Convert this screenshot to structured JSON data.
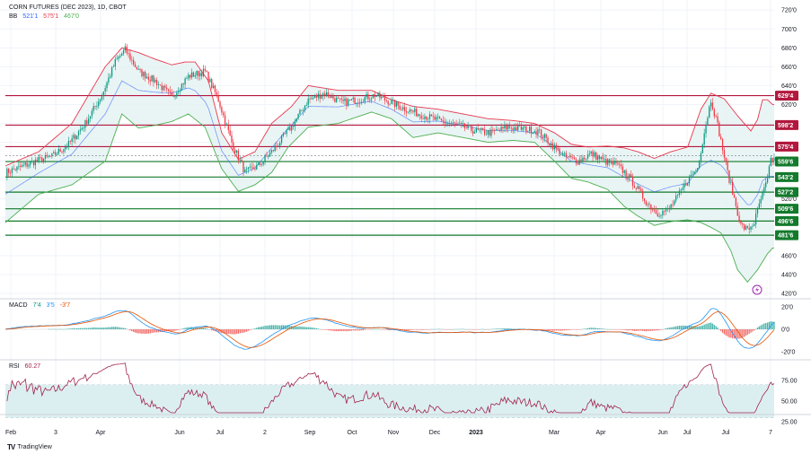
{
  "header": {
    "symbol": "CORN FUTURES (DEC 2023), 1D, CBOT",
    "bb_label": "BB",
    "bb_values": [
      "521'1",
      "575'1",
      "467'0"
    ],
    "macd_label": "MACD",
    "macd_values": [
      "7'4",
      "3'5",
      "-3'7"
    ],
    "rsi_label": "RSI",
    "rsi_value": "60.27"
  },
  "colors": {
    "up": "#089981",
    "down": "#f23645",
    "bb_upper": "#e8384f",
    "bb_lower": "#4caf50",
    "bb_basis": "#2962ff",
    "bb_fill": "#e4f1f1",
    "resistance": "#b2173d",
    "support": "#137a2c",
    "rsi_line": "#a0244f",
    "rsi_band": "#dceff0",
    "macd_line": "#2196f3",
    "signal_line": "#e65100"
  },
  "logo_text": "TradingView",
  "chart_data": [
    {
      "type": "candlestick",
      "name": "price",
      "y_axis_ticks": [
        "720'0",
        "700'0",
        "680'0",
        "660'0",
        "640'0",
        "620'0",
        "520'0",
        "460'0",
        "440'0",
        "420'0"
      ],
      "y_range": [
        420,
        724
      ],
      "x_labels": [
        "Feb",
        "3",
        "Apr",
        "Jun",
        "Jul",
        "2",
        "Sep",
        "Oct",
        "Nov",
        "Dec",
        "2023",
        "Mar",
        "Apr",
        "Jun",
        "Jul",
        "Jul",
        "7"
      ],
      "resistance_levels": [
        {
          "value": 629.4,
          "label": "629'4"
        },
        {
          "value": 598.2,
          "label": "598'2"
        },
        {
          "value": 575.4,
          "label": "575'4"
        }
      ],
      "support_levels": [
        {
          "value": 559.6,
          "label": "559'6"
        },
        {
          "value": 543.2,
          "label": "543'2"
        },
        {
          "value": 527.2,
          "label": "527'2"
        },
        {
          "value": 509.6,
          "label": "509'6"
        },
        {
          "value": 496.6,
          "label": "496'6"
        },
        {
          "value": 481.6,
          "label": "481'6"
        }
      ],
      "close_anchors": [
        [
          0,
          548
        ],
        [
          8,
          553
        ],
        [
          18,
          560
        ],
        [
          28,
          565
        ],
        [
          38,
          578
        ],
        [
          48,
          600
        ],
        [
          58,
          630
        ],
        [
          66,
          665
        ],
        [
          72,
          678
        ],
        [
          80,
          655
        ],
        [
          90,
          645
        ],
        [
          100,
          628
        ],
        [
          110,
          650
        ],
        [
          120,
          655
        ],
        [
          128,
          625
        ],
        [
          136,
          580
        ],
        [
          144,
          548
        ],
        [
          152,
          555
        ],
        [
          160,
          570
        ],
        [
          166,
          583
        ],
        [
          174,
          602
        ],
        [
          182,
          625
        ],
        [
          192,
          632
        ],
        [
          202,
          622
        ],
        [
          212,
          625
        ],
        [
          222,
          630
        ],
        [
          232,
          622
        ],
        [
          242,
          614
        ],
        [
          252,
          608
        ],
        [
          262,
          602
        ],
        [
          272,
          598
        ],
        [
          282,
          592
        ],
        [
          292,
          590
        ],
        [
          302,
          596
        ],
        [
          312,
          594
        ],
        [
          320,
          592
        ],
        [
          328,
          578
        ],
        [
          336,
          565
        ],
        [
          344,
          560
        ],
        [
          352,
          568
        ],
        [
          360,
          560
        ],
        [
          368,
          555
        ],
        [
          374,
          545
        ],
        [
          380,
          530
        ],
        [
          386,
          515
        ],
        [
          392,
          505
        ],
        [
          398,
          508
        ],
        [
          404,
          522
        ],
        [
          410,
          540
        ],
        [
          416,
          553
        ],
        [
          421,
          600
        ],
        [
          424,
          625
        ],
        [
          428,
          598
        ],
        [
          434,
          548
        ],
        [
          438,
          520
        ],
        [
          442,
          492
        ],
        [
          446,
          487
        ],
        [
          450,
          495
        ],
        [
          454,
          520
        ],
        [
          458,
          540
        ],
        [
          460,
          562
        ]
      ],
      "upper_band_anchors": [
        [
          0,
          555
        ],
        [
          20,
          570
        ],
        [
          40,
          600
        ],
        [
          60,
          660
        ],
        [
          70,
          680
        ],
        [
          80,
          675
        ],
        [
          90,
          668
        ],
        [
          100,
          662
        ],
        [
          108,
          665
        ],
        [
          114,
          665
        ],
        [
          122,
          645
        ],
        [
          130,
          590
        ],
        [
          140,
          562
        ],
        [
          150,
          570
        ],
        [
          160,
          600
        ],
        [
          172,
          618
        ],
        [
          182,
          640
        ],
        [
          200,
          635
        ],
        [
          220,
          635
        ],
        [
          232,
          625
        ],
        [
          245,
          618
        ],
        [
          260,
          615
        ],
        [
          275,
          610
        ],
        [
          290,
          605
        ],
        [
          305,
          603
        ],
        [
          318,
          600
        ],
        [
          330,
          590
        ],
        [
          340,
          578
        ],
        [
          350,
          575
        ],
        [
          362,
          576
        ],
        [
          372,
          574
        ],
        [
          380,
          570
        ],
        [
          390,
          563
        ],
        [
          400,
          570
        ],
        [
          410,
          575
        ],
        [
          418,
          615
        ],
        [
          424,
          632
        ],
        [
          432,
          626
        ],
        [
          440,
          608
        ],
        [
          448,
          592
        ],
        [
          452,
          604
        ],
        [
          455,
          625
        ],
        [
          458,
          625
        ],
        [
          461,
          620
        ]
      ],
      "lower_band_anchors": [
        [
          0,
          495
        ],
        [
          20,
          525
        ],
        [
          40,
          535
        ],
        [
          60,
          560
        ],
        [
          70,
          610
        ],
        [
          80,
          595
        ],
        [
          90,
          598
        ],
        [
          100,
          602
        ],
        [
          110,
          610
        ],
        [
          120,
          596
        ],
        [
          130,
          552
        ],
        [
          140,
          528
        ],
        [
          150,
          535
        ],
        [
          160,
          548
        ],
        [
          170,
          575
        ],
        [
          182,
          596
        ],
        [
          200,
          600
        ],
        [
          220,
          612
        ],
        [
          232,
          605
        ],
        [
          245,
          585
        ],
        [
          260,
          590
        ],
        [
          275,
          585
        ],
        [
          290,
          580
        ],
        [
          305,
          582
        ],
        [
          318,
          580
        ],
        [
          330,
          560
        ],
        [
          340,
          542
        ],
        [
          350,
          538
        ],
        [
          362,
          530
        ],
        [
          372,
          512
        ],
        [
          380,
          502
        ],
        [
          390,
          492
        ],
        [
          400,
          496
        ],
        [
          410,
          498
        ],
        [
          418,
          495
        ],
        [
          424,
          490
        ],
        [
          430,
          484
        ],
        [
          436,
          465
        ],
        [
          440,
          445
        ],
        [
          446,
          432
        ],
        [
          452,
          445
        ],
        [
          458,
          462
        ],
        [
          461,
          468
        ]
      ]
    },
    {
      "type": "bar",
      "name": "MACD",
      "y_axis_ticks": [
        "20'0",
        "0'0",
        "-20'0"
      ],
      "y_range": [
        -25,
        25
      ]
    },
    {
      "type": "line",
      "name": "RSI",
      "y_axis_ticks": [
        "75.00",
        "50.00",
        "25.00"
      ],
      "y_range": [
        20,
        90
      ],
      "band": [
        30,
        70
      ]
    }
  ]
}
